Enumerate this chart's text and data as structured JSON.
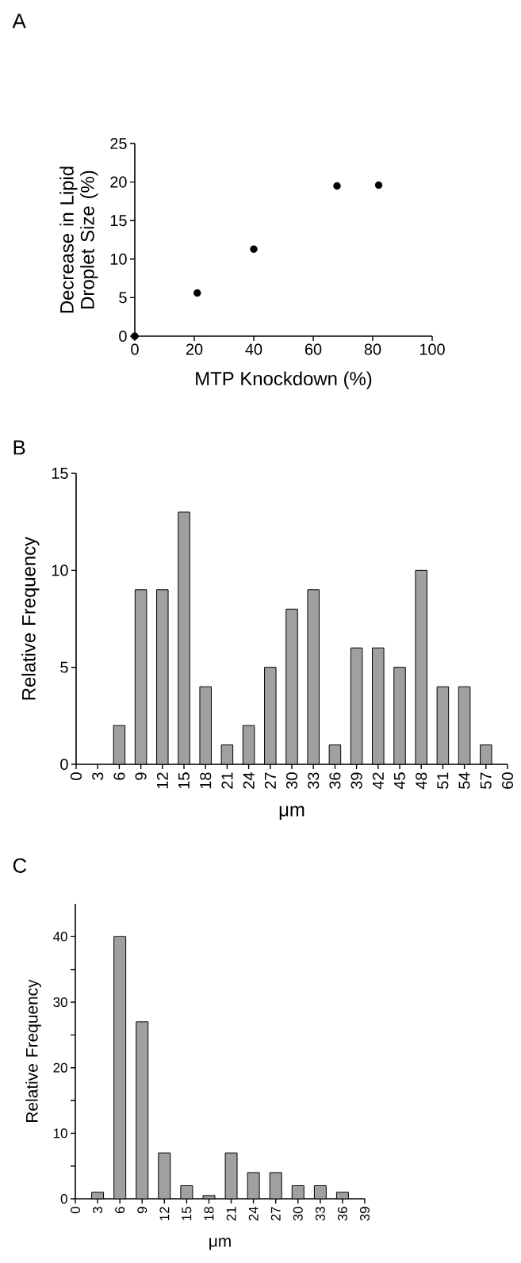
{
  "chart_data": [
    {
      "type": "scatter",
      "title": "A",
      "xlabel": "MTP Knockdown (%)",
      "ylabel": "Decrease in Lipid Droplet Size (%)",
      "x": [
        0,
        21,
        40,
        68,
        82
      ],
      "values": [
        0,
        5.6,
        11.3,
        19.5,
        19.6
      ],
      "color": "#000000",
      "xlim": [
        0,
        100
      ],
      "ylim": [
        0,
        25
      ],
      "xticks": [
        0,
        20,
        40,
        60,
        80,
        100
      ],
      "yticks": [
        0,
        5,
        10,
        15,
        20,
        25
      ],
      "grid": false
    },
    {
      "type": "bar",
      "title": "B",
      "xlabel": "μm",
      "ylabel": "Relative Frequency",
      "x": [
        6,
        9,
        12,
        15,
        18,
        21,
        24,
        27,
        30,
        33,
        36,
        39,
        42,
        45,
        48,
        51,
        54,
        57
      ],
      "values": [
        2,
        9,
        9,
        13,
        4,
        1,
        2,
        5,
        8,
        9,
        1,
        6,
        6,
        5,
        10,
        4,
        4,
        1
      ],
      "color": "#a0a0a0",
      "xlim": [
        0,
        60
      ],
      "ylim": [
        0,
        15
      ],
      "xticks": [
        0,
        3,
        6,
        9,
        12,
        15,
        18,
        21,
        24,
        27,
        30,
        33,
        36,
        39,
        42,
        45,
        48,
        51,
        54,
        57,
        60
      ],
      "yticks": [
        0,
        5,
        10,
        15
      ],
      "grid": false
    },
    {
      "type": "bar",
      "title": "C",
      "xlabel": "μm",
      "ylabel": "Relative Frequency",
      "x": [
        3,
        6,
        9,
        12,
        15,
        18,
        21,
        24,
        27,
        30,
        33,
        36
      ],
      "values": [
        1,
        40,
        27,
        7,
        2,
        0.5,
        7,
        4,
        4,
        2,
        2,
        1
      ],
      "color": "#a0a0a0",
      "xlim": [
        0,
        39
      ],
      "ylim": [
        0,
        45
      ],
      "xticks": [
        0,
        3,
        6,
        9,
        12,
        15,
        18,
        21,
        24,
        27,
        30,
        33,
        36,
        39
      ],
      "yticks": [
        0,
        {
          "value": 5,
          "label": null
        },
        10,
        {
          "value": 15,
          "label": null
        },
        20,
        {
          "value": 25,
          "label": null
        },
        30,
        {
          "value": 35,
          "label": null
        },
        40
      ],
      "grid": false
    }
  ]
}
